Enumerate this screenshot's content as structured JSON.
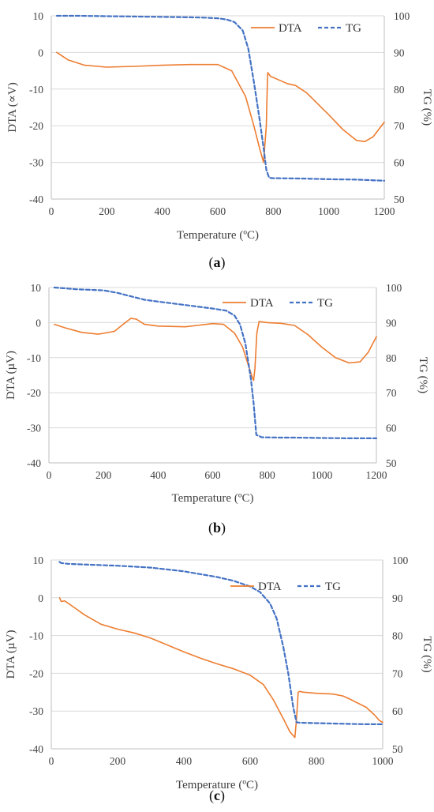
{
  "chart_data": [
    {
      "type": "line",
      "caption_label": "a",
      "xlabel": "Temperature (ºC)",
      "ylabel": "DTA (∝V)",
      "y2label": "TG (%)",
      "xlim": [
        0,
        1200
      ],
      "ylim": [
        -40,
        10
      ],
      "y2lim": [
        50,
        100
      ],
      "x_ticks": [
        0,
        200,
        400,
        600,
        800,
        1000,
        1200
      ],
      "y_ticks": [
        -40,
        -30,
        -20,
        -10,
        0,
        10
      ],
      "y2_ticks": [
        50,
        60,
        70,
        80,
        90,
        100
      ],
      "grid": true,
      "legend_position": "top-right",
      "series": [
        {
          "name": "DTA",
          "axis": "left",
          "color": "#ED7D31",
          "dash": "solid",
          "x": [
            20,
            60,
            120,
            200,
            300,
            400,
            500,
            600,
            650,
            700,
            730,
            750,
            765,
            775,
            778,
            780,
            790,
            820,
            850,
            880,
            920,
            960,
            1000,
            1050,
            1100,
            1130,
            1160,
            1200
          ],
          "y": [
            0,
            -2,
            -3.5,
            -4,
            -3.8,
            -3.5,
            -3.3,
            -3.3,
            -5,
            -12,
            -20,
            -26,
            -30,
            -20,
            -10,
            -5.5,
            -6.5,
            -7.5,
            -8.5,
            -9,
            -11,
            -14,
            -17,
            -21,
            -24,
            -24.3,
            -23,
            -19
          ]
        },
        {
          "name": "TG",
          "axis": "right",
          "color": "#4472C4",
          "dash": "dashed",
          "x": [
            20,
            100,
            200,
            300,
            400,
            500,
            550,
            600,
            630,
            660,
            690,
            710,
            730,
            750,
            765,
            775,
            785,
            800,
            900,
            1000,
            1100,
            1200
          ],
          "y": [
            100,
            100,
            99.9,
            99.8,
            99.7,
            99.6,
            99.5,
            99.3,
            99,
            98.3,
            96,
            91,
            82,
            72,
            64,
            58,
            55.8,
            55.7,
            55.6,
            55.4,
            55.3,
            55
          ]
        }
      ]
    },
    {
      "type": "line",
      "caption_label": "b",
      "xlabel": "Temperature (ºC)",
      "ylabel": "DTA (µV)",
      "y2label": "TG (%)",
      "xlim": [
        0,
        1200
      ],
      "ylim": [
        -40,
        10
      ],
      "y2lim": [
        50,
        100
      ],
      "x_ticks": [
        0,
        200,
        400,
        600,
        800,
        1000,
        1200
      ],
      "y_ticks": [
        -40,
        -30,
        -20,
        -10,
        0,
        10
      ],
      "y2_ticks": [
        50,
        60,
        70,
        80,
        90,
        100
      ],
      "grid": true,
      "legend_position": "top-right",
      "series": [
        {
          "name": "DTA",
          "axis": "left",
          "color": "#ED7D31",
          "dash": "solid",
          "x": [
            20,
            60,
            120,
            180,
            240,
            280,
            300,
            320,
            350,
            400,
            500,
            600,
            640,
            680,
            710,
            730,
            745,
            750,
            755,
            762,
            770,
            800,
            850,
            900,
            950,
            1000,
            1050,
            1100,
            1140,
            1170,
            1200
          ],
          "y": [
            -0.5,
            -1.5,
            -2.8,
            -3.3,
            -2.5,
            0,
            1.2,
            1,
            -0.5,
            -1,
            -1.2,
            -0.3,
            -0.5,
            -3,
            -7,
            -12,
            -15.5,
            -16.5,
            -13,
            -3,
            0.3,
            0,
            -0.2,
            -0.8,
            -3.5,
            -7,
            -10,
            -11.5,
            -11.2,
            -8.5,
            -4
          ]
        },
        {
          "name": "TG",
          "axis": "right",
          "color": "#4472C4",
          "dash": "dashed",
          "x": [
            20,
            100,
            200,
            250,
            300,
            350,
            400,
            500,
            600,
            650,
            680,
            700,
            720,
            740,
            750,
            760,
            780,
            850,
            900,
            1000,
            1100,
            1200
          ],
          "y": [
            100,
            99.5,
            99.2,
            98.5,
            97.5,
            96.5,
            96,
            95,
            94,
            93.4,
            92,
            89.5,
            84,
            74,
            67,
            58,
            57.3,
            57.2,
            57.2,
            57.1,
            57,
            57
          ]
        }
      ]
    },
    {
      "type": "line",
      "caption_label": "c",
      "xlabel": "Temperature (ºC)",
      "ylabel": "DTA (µV)",
      "y2label": "TG (%)",
      "xlim": [
        0,
        1000
      ],
      "ylim": [
        -40,
        10
      ],
      "y2lim": [
        50,
        100
      ],
      "x_ticks": [
        0,
        200,
        400,
        600,
        800,
        1000
      ],
      "y_ticks": [
        -40,
        -30,
        -20,
        -10,
        0,
        10
      ],
      "y2_ticks": [
        50,
        60,
        70,
        80,
        90,
        100
      ],
      "grid": true,
      "legend_position": "top-right",
      "series": [
        {
          "name": "DTA",
          "axis": "left",
          "color": "#ED7D31",
          "dash": "solid",
          "x": [
            25,
            30,
            40,
            60,
            100,
            150,
            200,
            250,
            300,
            350,
            400,
            450,
            500,
            550,
            600,
            640,
            670,
            700,
            720,
            735,
            740,
            745,
            750,
            760,
            800,
            850,
            880,
            900,
            950,
            975,
            990,
            1000
          ],
          "y": [
            0,
            -1,
            -0.8,
            -2,
            -4.5,
            -7,
            -8.3,
            -9.3,
            -10.7,
            -12.5,
            -14.3,
            -16,
            -17.5,
            -18.8,
            -20.5,
            -23,
            -27,
            -32,
            -35.5,
            -37,
            -32,
            -25,
            -24.8,
            -25,
            -25.3,
            -25.5,
            -26,
            -26.8,
            -29,
            -31,
            -32.5,
            -33
          ]
        },
        {
          "name": "TG",
          "axis": "right",
          "color": "#4472C4",
          "dash": "dashed",
          "x": [
            25,
            30,
            50,
            100,
            200,
            300,
            400,
            500,
            550,
            600,
            630,
            660,
            680,
            700,
            715,
            730,
            740,
            750,
            800,
            850,
            900,
            950,
            1000
          ],
          "y": [
            99.5,
            99.2,
            99,
            98.8,
            98.5,
            98,
            97,
            95.5,
            94.5,
            93,
            91.5,
            88.5,
            84.5,
            77,
            70,
            61,
            57,
            56.9,
            56.8,
            56.7,
            56.6,
            56.5,
            56.5
          ]
        }
      ]
    }
  ]
}
